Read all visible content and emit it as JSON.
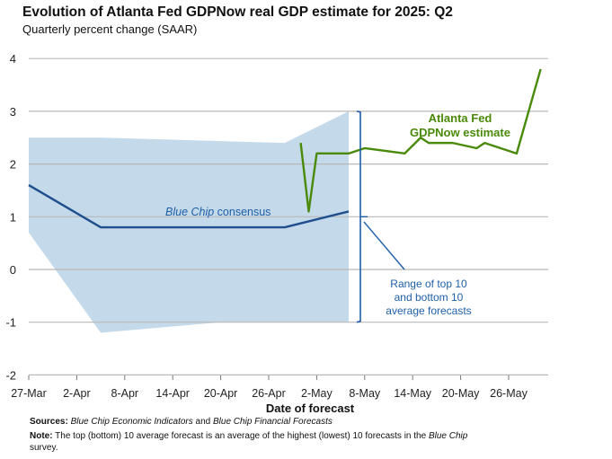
{
  "chart_data": {
    "type": "line",
    "title": "Evolution of Atlanta Fed GDPNow real GDP estimate for 2025: Q2",
    "subtitle": "Quarterly percent change (SAAR)",
    "xlabel": "Date of forecast",
    "ylabel": "",
    "ylim": [
      -2,
      4
    ],
    "yticks": [
      "-2",
      "-1",
      "0",
      "1",
      "2",
      "3",
      "4"
    ],
    "yticks_values": [
      -2,
      -1,
      0,
      1,
      2,
      3,
      4
    ],
    "x_start": "2025-03-27",
    "xticks": [
      "27-Mar",
      "2-Apr",
      "8-Apr",
      "14-Apr",
      "20-Apr",
      "26-Apr",
      "2-May",
      "8-May",
      "14-May",
      "20-May",
      "26-May"
    ],
    "xticks_dates": [
      "2025-03-27",
      "2025-04-02",
      "2025-04-08",
      "2025-04-14",
      "2025-04-20",
      "2025-04-26",
      "2025-05-02",
      "2025-05-08",
      "2025-05-14",
      "2025-05-20",
      "2025-05-26"
    ],
    "grid": true,
    "range_band": {
      "name": "Range of top 10 and bottom 10 average forecasts",
      "top": [
        [
          "2025-03-27",
          2.5
        ],
        [
          "2025-04-05",
          2.5
        ],
        [
          "2025-04-28",
          2.4
        ],
        [
          "2025-05-06",
          3.0
        ]
      ],
      "bottom": [
        [
          "2025-03-27",
          0.7
        ],
        [
          "2025-04-05",
          -1.2
        ],
        [
          "2025-04-20",
          -1.0
        ],
        [
          "2025-05-06",
          -1.0
        ]
      ]
    },
    "series": [
      {
        "name": "Blue Chip consensus",
        "color": "#1f4e8c",
        "points": [
          [
            "2025-03-27",
            1.6
          ],
          [
            "2025-04-05",
            0.8
          ],
          [
            "2025-04-28",
            0.8
          ],
          [
            "2025-05-06",
            1.1
          ]
        ]
      },
      {
        "name": "Atlanta Fed GDPNow estimate",
        "color": "#4a8a0a",
        "points": [
          [
            "2025-04-30",
            2.4
          ],
          [
            "2025-05-01",
            1.1
          ],
          [
            "2025-05-02",
            2.2
          ],
          [
            "2025-05-06",
            2.2
          ],
          [
            "2025-05-08",
            2.3
          ],
          [
            "2025-05-13",
            2.2
          ],
          [
            "2025-05-15",
            2.5
          ],
          [
            "2025-05-16",
            2.4
          ],
          [
            "2025-05-19",
            2.4
          ],
          [
            "2025-05-22",
            2.3
          ],
          [
            "2025-05-23",
            2.4
          ],
          [
            "2025-05-27",
            2.2
          ],
          [
            "2025-05-30",
            3.8
          ]
        ]
      }
    ],
    "annotations": {
      "gdpnow_line1": "Atlanta Fed",
      "gdpnow_line2": "GDPNow estimate",
      "bluechip_italic": "Blue Chip",
      "bluechip_rest": " consensus",
      "range_line1": "Range of top 10",
      "range_line2": "and bottom 10",
      "range_line3": "average forecasts"
    },
    "colors": {
      "band": "#c4d9ea",
      "grid": "#b8b8b8",
      "axis_text": "#222222",
      "bracket": "#1f5fa8"
    }
  },
  "footer": {
    "sources_label": "Sources:",
    "sources_text1": "Blue Chip Economic Indicators",
    "sources_and": " and ",
    "sources_text2": "Blue Chip Financial Forecasts",
    "note_label": "Note:",
    "note_text1": " The top (bottom) 10 average forecast is an average of the highest (lowest) 10 forecasts in the ",
    "note_italic": "Blue Chip",
    "note_text2": "survey."
  }
}
